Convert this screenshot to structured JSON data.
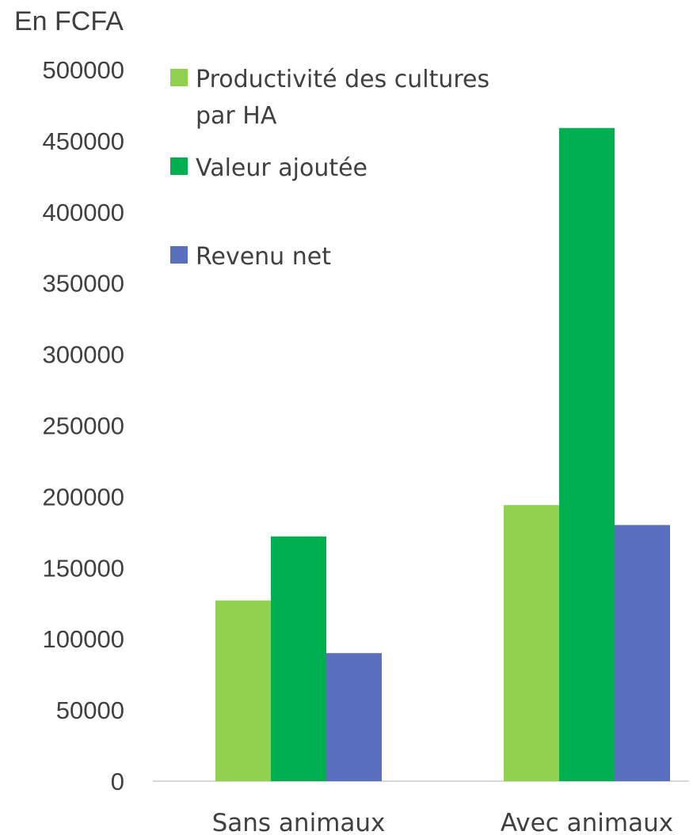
{
  "chart_data": {
    "type": "bar",
    "unit_label": "En FCFA",
    "categories": [
      "Sans animaux",
      "Avec animaux"
    ],
    "series": [
      {
        "name": "Productivité des cultures par HA",
        "name_lines": [
          "Productivité des cultures",
          "par HA"
        ],
        "color": "#92d050",
        "values": [
          127000,
          194000
        ]
      },
      {
        "name": "Valeur ajoutée",
        "name_lines": [
          "Valeur ajoutée"
        ],
        "color": "#00b050",
        "values": [
          172000,
          459000
        ]
      },
      {
        "name": "Revenu net",
        "name_lines": [
          "Revenu net"
        ],
        "color": "#5a70bf",
        "values": [
          90000,
          180000
        ]
      }
    ],
    "ylim": [
      0,
      500000
    ],
    "yticks": [
      "0",
      "50000",
      "100000",
      "150000",
      "200000",
      "250000",
      "300000",
      "350000",
      "400000",
      "450000",
      "500000"
    ],
    "grid": false,
    "legend_position": "top-left"
  }
}
